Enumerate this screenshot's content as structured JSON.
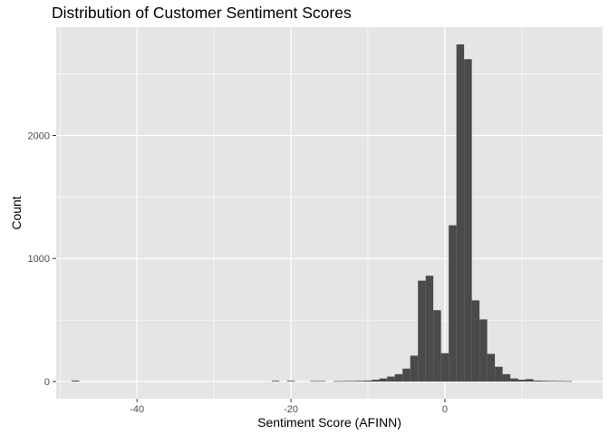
{
  "chart_data": {
    "type": "bar",
    "title": "Distribution of Customer Sentiment Scores",
    "xlabel": "Sentiment Score (AFINN)",
    "ylabel": "Count",
    "xlim": [
      -50.5,
      20.5
    ],
    "ylim": [
      -140,
      2880
    ],
    "x_ticks": [
      -40,
      -20,
      0
    ],
    "x_tick_labels": [
      "-40",
      "-20",
      "0"
    ],
    "y_ticks": [
      0,
      1000,
      2000
    ],
    "y_tick_labels": [
      "0",
      "1000",
      "2000"
    ],
    "grid": true,
    "bin_width": 1,
    "bins": [
      {
        "x": -48,
        "count": 8
      },
      {
        "x": -22,
        "count": 6
      },
      {
        "x": -20,
        "count": 6
      },
      {
        "x": -17,
        "count": 4
      },
      {
        "x": -16,
        "count": 4
      },
      {
        "x": -14,
        "count": 3
      },
      {
        "x": -13,
        "count": 4
      },
      {
        "x": -12,
        "count": 5
      },
      {
        "x": -11,
        "count": 6
      },
      {
        "x": -10,
        "count": 8
      },
      {
        "x": -9,
        "count": 15
      },
      {
        "x": -8,
        "count": 25
      },
      {
        "x": -7,
        "count": 40
      },
      {
        "x": -6,
        "count": 60
      },
      {
        "x": -5,
        "count": 105
      },
      {
        "x": -4,
        "count": 210
      },
      {
        "x": -3,
        "count": 820
      },
      {
        "x": -2,
        "count": 860
      },
      {
        "x": -1,
        "count": 580
      },
      {
        "x": 0,
        "count": 230
      },
      {
        "x": 1,
        "count": 1270
      },
      {
        "x": 2,
        "count": 2740
      },
      {
        "x": 3,
        "count": 2620
      },
      {
        "x": 4,
        "count": 660
      },
      {
        "x": 5,
        "count": 505
      },
      {
        "x": 6,
        "count": 225
      },
      {
        "x": 7,
        "count": 120
      },
      {
        "x": 8,
        "count": 60
      },
      {
        "x": 9,
        "count": 25
      },
      {
        "x": 10,
        "count": 15
      },
      {
        "x": 11,
        "count": 20
      },
      {
        "x": 12,
        "count": 8
      },
      {
        "x": 13,
        "count": 6
      },
      {
        "x": 14,
        "count": 5
      },
      {
        "x": 15,
        "count": 4
      },
      {
        "x": 16,
        "count": 3
      }
    ],
    "colors": {
      "bar": "#4a4a4a",
      "panel_background": "#e5e5e5",
      "grid_major": "#ffffff",
      "tick_label": "#4d4d4d"
    }
  }
}
